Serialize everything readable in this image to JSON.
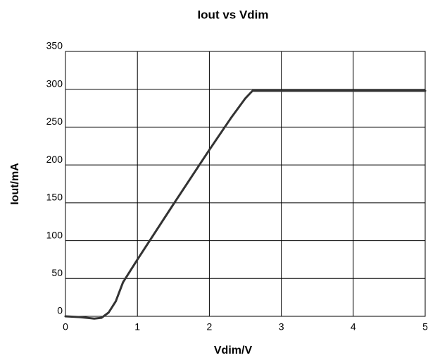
{
  "chart_data": {
    "type": "line",
    "title": "Iout vs Vdim",
    "x_label": "Vdim/V",
    "y_label": "Iout/mA",
    "xlim": [
      0,
      5
    ],
    "ylim": [
      0,
      350
    ],
    "xticks": [
      0,
      1,
      2,
      3,
      4,
      5
    ],
    "yticks": [
      0,
      50,
      100,
      150,
      200,
      250,
      300,
      350
    ],
    "grid": true,
    "series": [
      {
        "color": "#333333",
        "x": [
          0,
          0.2,
          0.4,
          0.5,
          0.6,
          0.7,
          0.8,
          1.0,
          1.5,
          2.0,
          2.3,
          2.5,
          2.6,
          3,
          4,
          5
        ],
        "values": [
          0,
          -1,
          -3,
          -2,
          5,
          20,
          45,
          75,
          148,
          220,
          262,
          288,
          298,
          298,
          298,
          298
        ]
      }
    ]
  }
}
